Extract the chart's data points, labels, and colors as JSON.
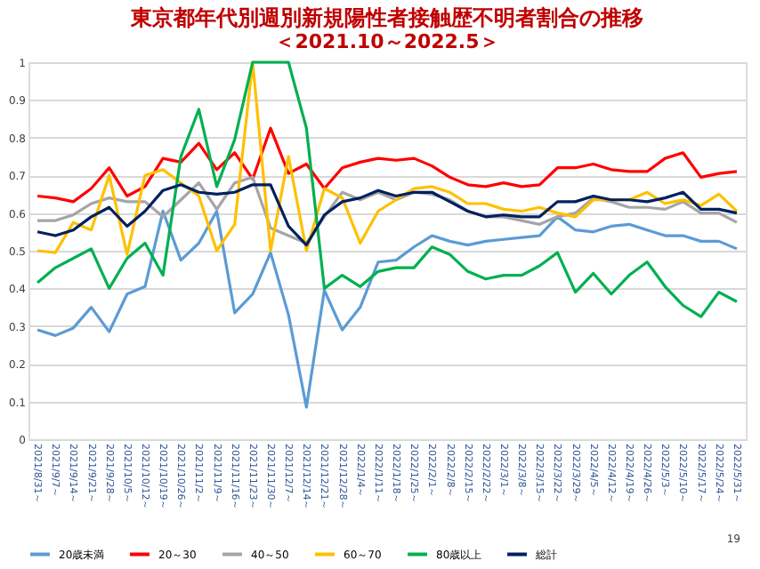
{
  "chart_data": {
    "type": "line",
    "title": "東京都年代別週別新規陽性者接触歴不明者割合の推移",
    "subtitle": "＜2021.10～2022.5＞",
    "categories": [
      "2021/8/31～",
      "2021/9/7～",
      "2021/9/14～",
      "2021/9/21～",
      "2021/9/28～",
      "2021/10/5～",
      "2021/10/12～",
      "2021/10/19～",
      "2021/10/26～",
      "2021/11/2～",
      "2021/11/9～",
      "2021/11/16～",
      "2021/11/23～",
      "2021/11/30～",
      "2021/12/7～",
      "2021/12/14～",
      "2021/12/21～",
      "2021/12/28～",
      "2022/1/4～",
      "2022/1/11～",
      "2022/1/18～",
      "2022/1/25～",
      "2022/2/1～",
      "2022/2/8～",
      "2022/2/15～",
      "2022/2/22～",
      "2022/3/1～",
      "2022/3/8～",
      "2022/3/15～",
      "2022/3/22～",
      "2022/3/29～",
      "2022/4/5～",
      "2022/4/12～",
      "2022/4/19～",
      "2022/4/26～",
      "2022/5/3～",
      "2022/5/10～",
      "2022/5/17～",
      "2022/5/24～",
      "2022/5/31～"
    ],
    "series": [
      {
        "name": "20歳未満",
        "color": "#5b9bd5",
        "values": [
          0.29,
          0.275,
          0.295,
          0.35,
          0.285,
          0.385,
          0.405,
          0.605,
          0.475,
          0.52,
          0.605,
          0.335,
          0.385,
          0.495,
          0.33,
          0.085,
          0.395,
          0.29,
          0.35,
          0.47,
          0.475,
          0.51,
          0.54,
          0.525,
          0.515,
          0.525,
          0.53,
          0.535,
          0.54,
          0.59,
          0.555,
          0.55,
          0.565,
          0.57,
          0.555,
          0.54,
          0.54,
          0.525,
          0.525,
          0.505
        ]
      },
      {
        "name": "20～30",
        "color": "#ff0000",
        "values": [
          0.645,
          0.64,
          0.63,
          0.665,
          0.72,
          0.645,
          0.67,
          0.745,
          0.735,
          0.785,
          0.715,
          0.76,
          0.69,
          0.825,
          0.705,
          0.73,
          0.665,
          0.72,
          0.735,
          0.745,
          0.74,
          0.745,
          0.725,
          0.695,
          0.675,
          0.67,
          0.68,
          0.67,
          0.675,
          0.72,
          0.72,
          0.73,
          0.715,
          0.71,
          0.71,
          0.745,
          0.76,
          0.695,
          0.705,
          0.71
        ]
      },
      {
        "name": "40～50",
        "color": "#a5a5a5",
        "values": [
          0.58,
          0.58,
          0.595,
          0.625,
          0.64,
          0.63,
          0.63,
          0.59,
          0.635,
          0.68,
          0.61,
          0.68,
          0.695,
          0.56,
          0.54,
          0.52,
          0.59,
          0.655,
          0.635,
          0.655,
          0.635,
          0.655,
          0.65,
          0.635,
          0.605,
          0.59,
          0.59,
          0.58,
          0.57,
          0.59,
          0.6,
          0.64,
          0.63,
          0.615,
          0.615,
          0.61,
          0.63,
          0.6,
          0.6,
          0.575
        ]
      },
      {
        "name": "60～70",
        "color": "#ffc000",
        "values": [
          0.5,
          0.495,
          0.575,
          0.555,
          0.7,
          0.49,
          0.7,
          0.715,
          0.68,
          0.645,
          0.5,
          0.57,
          1.0,
          0.5,
          0.75,
          0.5,
          0.665,
          0.64,
          0.52,
          0.605,
          0.635,
          0.665,
          0.67,
          0.655,
          0.625,
          0.625,
          0.61,
          0.605,
          0.615,
          0.6,
          0.59,
          0.635,
          0.635,
          0.635,
          0.655,
          0.625,
          0.635,
          0.62,
          0.65,
          0.605
        ]
      },
      {
        "name": "80歳以上",
        "color": "#00b050",
        "values": [
          0.415,
          0.455,
          0.48,
          0.505,
          0.4,
          0.48,
          0.52,
          0.435,
          0.75,
          0.875,
          0.67,
          0.795,
          1.0,
          1.0,
          1.0,
          0.825,
          0.4,
          0.435,
          0.405,
          0.445,
          0.455,
          0.455,
          0.51,
          0.49,
          0.445,
          0.425,
          0.435,
          0.435,
          0.46,
          0.495,
          0.39,
          0.44,
          0.385,
          0.435,
          0.47,
          0.405,
          0.355,
          0.325,
          0.39,
          0.365
        ]
      },
      {
        "name": "総計",
        "color": "#002060",
        "values": [
          0.55,
          0.54,
          0.555,
          0.59,
          0.615,
          0.565,
          0.605,
          0.66,
          0.675,
          0.655,
          0.65,
          0.655,
          0.675,
          0.675,
          0.565,
          0.515,
          0.595,
          0.63,
          0.64,
          0.66,
          0.645,
          0.655,
          0.655,
          0.63,
          0.605,
          0.59,
          0.595,
          0.59,
          0.59,
          0.63,
          0.63,
          0.645,
          0.635,
          0.635,
          0.63,
          0.64,
          0.655,
          0.61,
          0.61,
          0.6
        ]
      }
    ],
    "ylim": [
      0,
      1
    ],
    "yticks": [
      0,
      0.1,
      0.2,
      0.3,
      0.4,
      0.5,
      0.6,
      0.7,
      0.8,
      0.9,
      1
    ],
    "grid": "y",
    "legend": "bottom",
    "line_style": "solid",
    "annotations": [
      "19"
    ]
  }
}
